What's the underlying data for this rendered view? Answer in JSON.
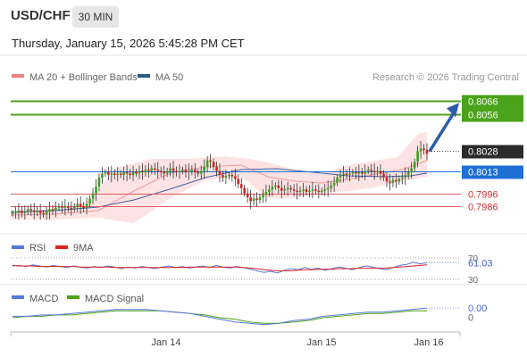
{
  "header": {
    "symbol": "USD/CHF",
    "timeframe": "30 MIN",
    "datetime": "Thursday, January 15, 2026 5:45:28 PM CET"
  },
  "main_legend": [
    {
      "label": "MA 20 + Bollinger Bands",
      "color": "#f08080"
    },
    {
      "label": "MA 50",
      "color": "#2d5a8c"
    }
  ],
  "research_credit": "Research © 2026 Trading Central",
  "colors": {
    "green_line": "#4aa31a",
    "blue_line": "#1f6fd6",
    "red_line": "#e06060",
    "candle_up": "#3aa01e",
    "candle_down": "#d42020",
    "bollinger_fill": "#fde0e0",
    "ma50": "#4060a8",
    "arrow": "#2a5ca8"
  },
  "chart_data": [
    {
      "type": "candlestick",
      "title": "USD/CHF",
      "ylim": [
        0.797,
        0.8075
      ],
      "x_tick_labels": [
        "Jan 14",
        "Jan 15",
        "Jan 16"
      ],
      "x_ticks": [
        186,
        360,
        480
      ],
      "price_levels": [
        {
          "label": "0.8066",
          "value": 0.8066,
          "kind": "target",
          "box": "green"
        },
        {
          "label": "0.8056",
          "value": 0.8056,
          "kind": "target",
          "box": "green"
        },
        {
          "label": "0.8028",
          "value": 0.8028,
          "kind": "last",
          "box": "dark"
        },
        {
          "label": "0.8013",
          "value": 0.8013,
          "kind": "pivot",
          "box": "blue"
        },
        {
          "label": "0.7996",
          "value": 0.7996,
          "kind": "support",
          "box": "none"
        },
        {
          "label": "0.7986",
          "value": 0.7986,
          "kind": "support",
          "box": "none"
        }
      ],
      "closes": [
        0.7981,
        0.7982,
        0.7983,
        0.7981,
        0.7982,
        0.7984,
        0.7983,
        0.7982,
        0.7983,
        0.7981,
        0.798,
        0.7982,
        0.7984,
        0.7983,
        0.7985,
        0.7986,
        0.7985,
        0.7986,
        0.7985,
        0.7984,
        0.7986,
        0.7988,
        0.7986,
        0.7985,
        0.7988,
        0.7992,
        0.7996,
        0.8001,
        0.8008,
        0.8011,
        0.8012,
        0.801,
        0.8011,
        0.801,
        0.8011,
        0.801,
        0.8012,
        0.8011,
        0.801,
        0.8012,
        0.8011,
        0.8013,
        0.8012,
        0.8014,
        0.8013,
        0.8015,
        0.8014,
        0.8013,
        0.8012,
        0.8011,
        0.8013,
        0.8015,
        0.8013,
        0.8012,
        0.8013,
        0.8014,
        0.8012,
        0.8013,
        0.8014,
        0.8012,
        0.8011,
        0.8013,
        0.8016,
        0.8021,
        0.802,
        0.8016,
        0.8013,
        0.801,
        0.8008,
        0.8009,
        0.801,
        0.8009,
        0.8007,
        0.8003,
        0.8,
        0.7996,
        0.7993,
        0.799,
        0.7992,
        0.7991,
        0.7993,
        0.7995,
        0.7997,
        0.7999,
        0.8001,
        0.8002,
        0.8,
        0.7998,
        0.7999,
        0.8,
        0.7999,
        0.7998,
        0.7997,
        0.7998,
        0.7999,
        0.7997,
        0.7998,
        0.7999,
        0.7998,
        0.7997,
        0.7998,
        0.7999,
        0.8,
        0.8002,
        0.8004,
        0.8008,
        0.801,
        0.8011,
        0.801,
        0.8011,
        0.8012,
        0.8011,
        0.8012,
        0.8011,
        0.8013,
        0.8014,
        0.8013,
        0.8012,
        0.8013,
        0.8011,
        0.8008,
        0.8005,
        0.8004,
        0.8006,
        0.8005,
        0.8007,
        0.8008,
        0.801,
        0.8012,
        0.8015,
        0.802,
        0.8028,
        0.803,
        0.8029,
        0.8026
      ],
      "ma50_points": [
        [
          12,
          238
        ],
        [
          60,
          236
        ],
        [
          110,
          232
        ],
        [
          150,
          224
        ],
        [
          190,
          212
        ],
        [
          230,
          199
        ],
        [
          270,
          190
        ],
        [
          310,
          189
        ],
        [
          350,
          193
        ],
        [
          390,
          197
        ],
        [
          430,
          198
        ],
        [
          460,
          197
        ],
        [
          478,
          194
        ]
      ],
      "bollinger": {
        "middle": [
          [
            12,
            241
          ],
          [
            60,
            240
          ],
          [
            110,
            236
          ],
          [
            150,
            214
          ],
          [
            190,
            194
          ],
          [
            230,
            187
          ],
          [
            270,
            185
          ],
          [
            300,
            198
          ],
          [
            330,
            203
          ],
          [
            360,
            205
          ],
          [
            390,
            201
          ],
          [
            420,
            195
          ],
          [
            450,
            190
          ],
          [
            478,
            180
          ]
        ],
        "upper": [
          [
            12,
            236
          ],
          [
            60,
            234
          ],
          [
            100,
            226
          ],
          [
            130,
            188
          ],
          [
            170,
            178
          ],
          [
            210,
            178
          ],
          [
            250,
            175
          ],
          [
            280,
            178
          ],
          [
            300,
            182
          ],
          [
            330,
            190
          ],
          [
            360,
            195
          ],
          [
            390,
            185
          ],
          [
            420,
            180
          ],
          [
            445,
            176
          ],
          [
            468,
            150
          ],
          [
            478,
            148
          ]
        ],
        "lower": [
          [
            12,
            246
          ],
          [
            60,
            246
          ],
          [
            110,
            244
          ],
          [
            150,
            250
          ],
          [
            190,
            222
          ],
          [
            230,
            202
          ],
          [
            270,
            198
          ],
          [
            300,
            222
          ],
          [
            330,
            222
          ],
          [
            360,
            216
          ],
          [
            390,
            214
          ],
          [
            420,
            210
          ],
          [
            445,
            204
          ],
          [
            468,
            200
          ],
          [
            478,
            198
          ]
        ]
      },
      "arrow": {
        "from_value": 0.8028,
        "to_value": 0.8066
      }
    },
    {
      "type": "line",
      "title": "",
      "legend": [
        {
          "name": "RSI",
          "color": "#5577dd"
        },
        {
          "name": "9MA",
          "color": "#dd2222"
        }
      ],
      "ylim": [
        25,
        75
      ],
      "y_ticks": [
        {
          "label": "70",
          "value": 70
        },
        {
          "label": "30",
          "value": 30
        }
      ],
      "current_label": "61.03",
      "series": [
        {
          "name": "RSI",
          "values": [
            55,
            56,
            54,
            57,
            55,
            53,
            56,
            54,
            52,
            55,
            53,
            51,
            54,
            52,
            55,
            53,
            50,
            53,
            51,
            54,
            52,
            50,
            53,
            55,
            52,
            54,
            51,
            53,
            55,
            52,
            56,
            53,
            51,
            54,
            52,
            49,
            46,
            43,
            45,
            42,
            47,
            50,
            48,
            52,
            49,
            51,
            47,
            50,
            53,
            51,
            48,
            52,
            55,
            53,
            50,
            48,
            52,
            56,
            58,
            62,
            59,
            61
          ]
        },
        {
          "name": "9MA",
          "values": [
            56,
            55,
            55,
            55,
            54,
            54,
            54,
            54,
            54,
            54,
            53,
            53,
            53,
            53,
            53,
            52,
            52,
            52,
            52,
            52,
            52,
            52,
            52,
            52,
            52,
            52,
            53,
            53,
            53,
            53,
            53,
            53,
            53,
            53,
            52,
            51,
            50,
            48,
            47,
            46,
            46,
            46,
            47,
            48,
            48,
            49,
            49,
            49,
            50,
            50,
            50,
            51,
            51,
            51,
            51,
            51,
            52,
            53,
            54,
            55,
            56,
            57
          ]
        }
      ]
    },
    {
      "type": "line",
      "title": "",
      "legend": [
        {
          "name": "MACD",
          "color": "#5577dd"
        },
        {
          "name": "MACD Signal",
          "color": "#4aa31a"
        }
      ],
      "ylim": [
        -0.0012,
        0.0006
      ],
      "y_ticks": [
        {
          "label": "0",
          "value": 0
        }
      ],
      "current_label": "0.00",
      "series": [
        {
          "name": "MACD",
          "values": [
            -0.0002,
            -0.0002,
            -0.0001,
            -0.0001,
            0,
            0.0001,
            0.0002,
            0.0003,
            0.0003,
            0.0003,
            0.0002,
            0.0001,
            0,
            -0.0002,
            -0.0004,
            -0.0006,
            -0.0007,
            -0.0008,
            -0.0007,
            -0.0005,
            -0.0004,
            -0.0002,
            -0.0001,
            0,
            0.0001,
            0.0001,
            0.0002,
            0.0003,
            0.0004
          ]
        },
        {
          "name": "MACD Signal",
          "values": [
            -0.0003,
            -0.0002,
            -0.0002,
            -0.0001,
            -0.0001,
            0,
            0.0001,
            0.0002,
            0.0002,
            0.0002,
            0.0002,
            0.0001,
            0,
            -0.0001,
            -0.0003,
            -0.0004,
            -0.0006,
            -0.0007,
            -0.0007,
            -0.0006,
            -0.0005,
            -0.0003,
            -0.0002,
            -0.0001,
            0,
            0,
            0.0001,
            0.0002,
            0.0002
          ]
        }
      ]
    }
  ]
}
